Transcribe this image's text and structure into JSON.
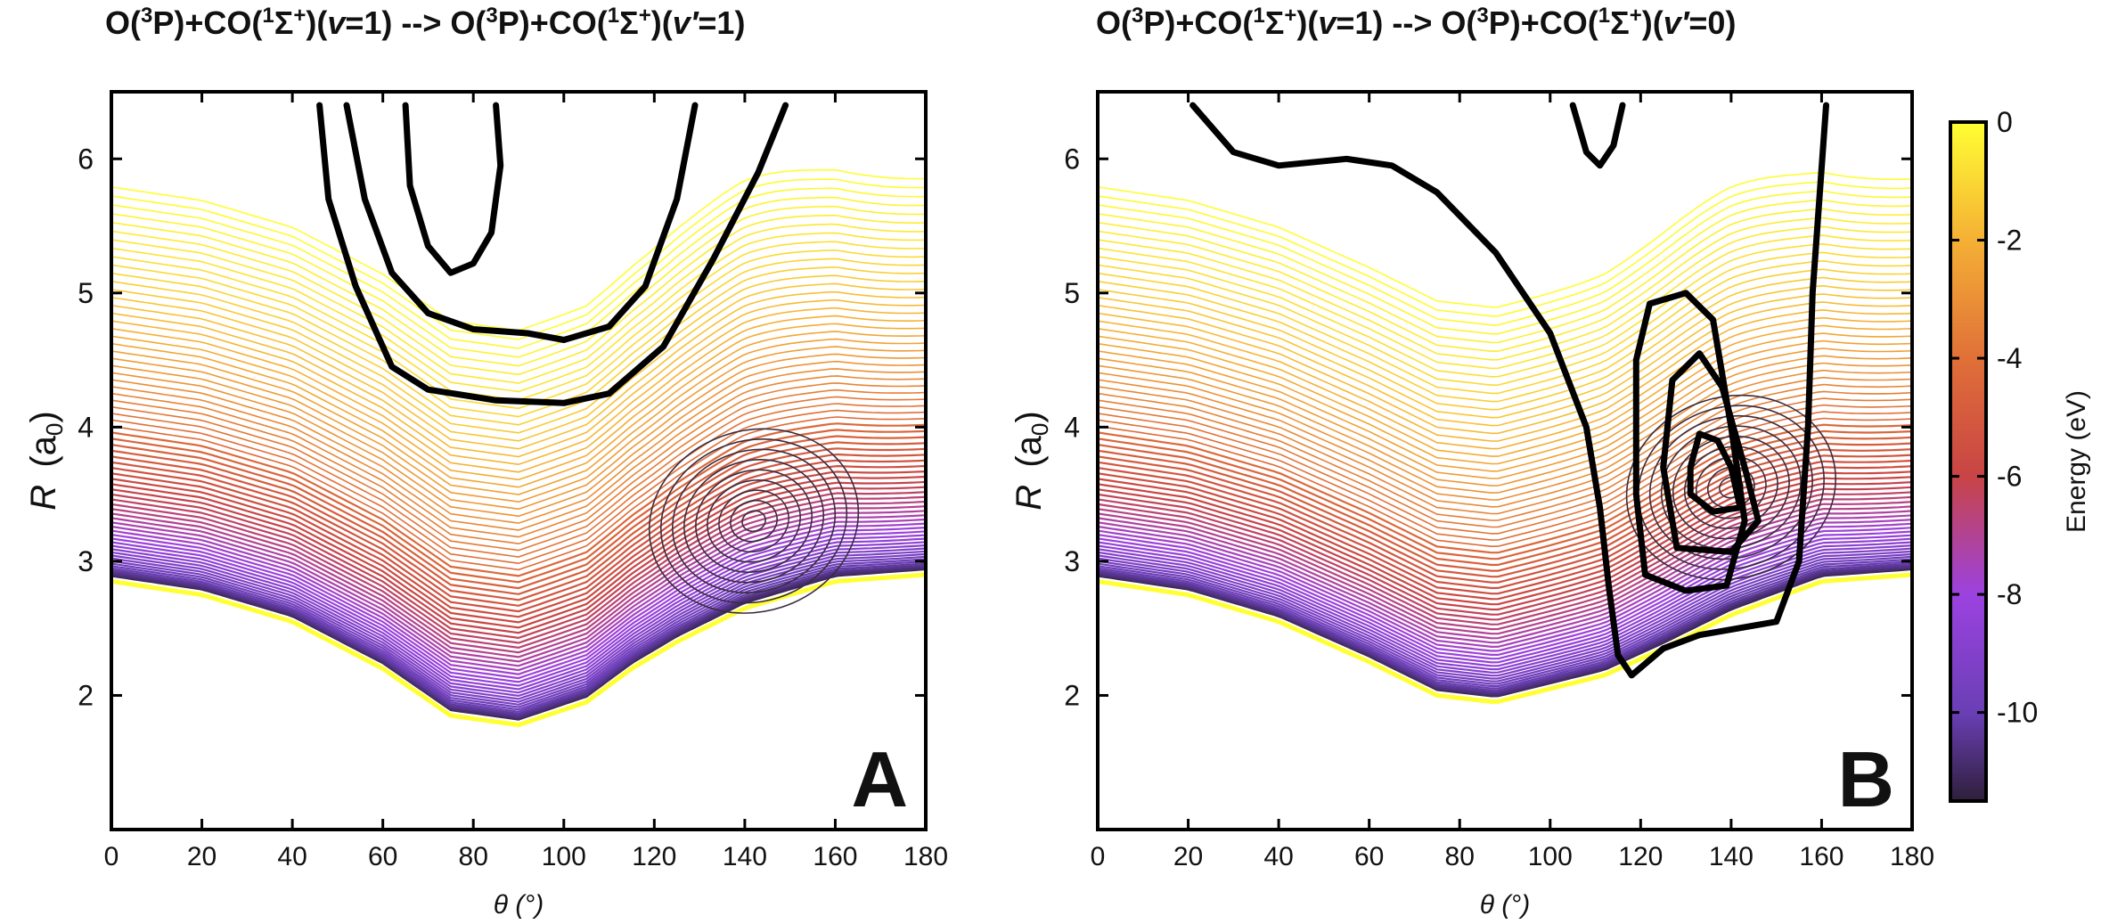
{
  "chart_data": [
    {
      "type": "contour",
      "panel_label": "A",
      "title": {
        "prefix": "O(",
        "s1": "3",
        "mid1": "P)+CO(",
        "s2": "1",
        "mid2": "Σ",
        "s3": "+",
        "mid3": ")(",
        "v": "v",
        "tail1": "=1) --> O(",
        "s4": "3",
        "mid4": "P)+CO(",
        "s5": "1",
        "mid5": "Σ",
        "s6": "+",
        "mid6": ")(",
        "vp": "v′",
        "tail2": "=1)"
      },
      "xlabel": "θ (°)",
      "ylabel_main": "R",
      "ylabel_unit": "(a",
      "ylabel_sub": "0",
      "ylabel_close": ")",
      "xlim": [
        0,
        180
      ],
      "ylim": [
        1.0,
        6.5
      ],
      "xticks": [
        "0",
        "20",
        "40",
        "60",
        "80",
        "100",
        "120",
        "140",
        "160",
        "180"
      ],
      "yticks": [
        "2",
        "3",
        "4",
        "5",
        "6"
      ],
      "wall_curve": [
        [
          0,
          2.85
        ],
        [
          20,
          2.75
        ],
        [
          40,
          2.55
        ],
        [
          60,
          2.2
        ],
        [
          75,
          1.85
        ],
        [
          90,
          1.78
        ],
        [
          105,
          1.95
        ],
        [
          115,
          2.2
        ],
        [
          125,
          2.4
        ],
        [
          140,
          2.65
        ],
        [
          160,
          2.85
        ],
        [
          180,
          2.9
        ]
      ],
      "wavefunction_contours": [
        [
          [
            46,
            6.4
          ],
          [
            48,
            5.7
          ],
          [
            54,
            5.05
          ],
          [
            62,
            4.45
          ],
          [
            70,
            4.28
          ],
          [
            85,
            4.2
          ],
          [
            100,
            4.18
          ],
          [
            110,
            4.25
          ],
          [
            122,
            4.6
          ],
          [
            133,
            5.25
          ],
          [
            143,
            5.9
          ],
          [
            149,
            6.4
          ]
        ],
        [
          [
            52,
            6.4
          ],
          [
            56,
            5.7
          ],
          [
            62,
            5.15
          ],
          [
            70,
            4.85
          ],
          [
            80,
            4.73
          ],
          [
            92,
            4.7
          ],
          [
            100,
            4.65
          ],
          [
            110,
            4.75
          ],
          [
            118,
            5.05
          ],
          [
            125,
            5.7
          ],
          [
            129,
            6.4
          ]
        ],
        [
          [
            65,
            6.4
          ],
          [
            66,
            5.8
          ],
          [
            70,
            5.35
          ],
          [
            75,
            5.15
          ],
          [
            80,
            5.22
          ],
          [
            84,
            5.45
          ],
          [
            86,
            5.95
          ],
          [
            85,
            6.4
          ]
        ]
      ],
      "well_center": [
        142,
        3.3
      ]
    },
    {
      "type": "contour",
      "panel_label": "B",
      "title": {
        "prefix": "O(",
        "s1": "3",
        "mid1": "P)+CO(",
        "s2": "1",
        "mid2": "Σ",
        "s3": "+",
        "mid3": ")(",
        "v": "v",
        "tail1": "=1) --> O(",
        "s4": "3",
        "mid4": "P)+CO(",
        "s5": "1",
        "mid5": "Σ",
        "s6": "+",
        "mid6": ")(",
        "vp": "v′",
        "tail2": "=0)"
      },
      "xlabel": "θ (°)",
      "ylabel_main": "R",
      "ylabel_unit": "(a",
      "ylabel_sub": "0",
      "ylabel_close": ")",
      "xlim": [
        0,
        180
      ],
      "ylim": [
        1.0,
        6.5
      ],
      "xticks": [
        "0",
        "20",
        "40",
        "60",
        "80",
        "100",
        "120",
        "140",
        "160",
        "180"
      ],
      "yticks": [
        "2",
        "3",
        "4",
        "5",
        "6"
      ],
      "wall_curve": [
        [
          0,
          2.85
        ],
        [
          20,
          2.75
        ],
        [
          40,
          2.55
        ],
        [
          60,
          2.25
        ],
        [
          75,
          2.0
        ],
        [
          88,
          1.95
        ],
        [
          100,
          2.05
        ],
        [
          112,
          2.15
        ],
        [
          125,
          2.35
        ],
        [
          140,
          2.6
        ],
        [
          160,
          2.85
        ],
        [
          180,
          2.9
        ]
      ],
      "wavefunction_contours": [
        [
          [
            21,
            6.4
          ],
          [
            30,
            6.05
          ],
          [
            40,
            5.95
          ],
          [
            55,
            6.0
          ],
          [
            65,
            5.95
          ],
          [
            75,
            5.75
          ],
          [
            88,
            5.3
          ],
          [
            100,
            4.7
          ],
          [
            108,
            4.0
          ],
          [
            111,
            3.4
          ],
          [
            113,
            2.8
          ],
          [
            115,
            2.3
          ],
          [
            118,
            2.15
          ],
          [
            125,
            2.35
          ],
          [
            133,
            2.45
          ],
          [
            150,
            2.55
          ],
          [
            155,
            3.0
          ],
          [
            157,
            4.0
          ],
          [
            158,
            5.0
          ],
          [
            161,
            6.4
          ]
        ],
        [
          [
            119,
            3.5
          ],
          [
            119,
            4.5
          ],
          [
            122,
            4.92
          ],
          [
            130,
            5.0
          ],
          [
            136,
            4.8
          ],
          [
            140,
            4.0
          ],
          [
            143,
            3.3
          ],
          [
            139,
            2.82
          ],
          [
            130,
            2.78
          ],
          [
            121,
            2.9
          ],
          [
            119,
            3.5
          ]
        ],
        [
          [
            125,
            3.7
          ],
          [
            127,
            4.35
          ],
          [
            133,
            4.55
          ],
          [
            138,
            4.3
          ],
          [
            143,
            3.7
          ],
          [
            146,
            3.3
          ],
          [
            140,
            3.07
          ],
          [
            128,
            3.1
          ],
          [
            125,
            3.7
          ]
        ],
        [
          [
            131,
            3.7
          ],
          [
            133,
            3.95
          ],
          [
            137,
            3.9
          ],
          [
            140,
            3.7
          ],
          [
            142,
            3.4
          ],
          [
            136,
            3.37
          ],
          [
            131,
            3.5
          ],
          [
            131,
            3.7
          ]
        ],
        [
          [
            105,
            6.4
          ],
          [
            108,
            6.05
          ],
          [
            111,
            5.95
          ],
          [
            114,
            6.1
          ],
          [
            116,
            6.4
          ]
        ]
      ],
      "well_center": [
        140,
        3.55
      ]
    }
  ],
  "colorbar": {
    "label": "Energy (eV)",
    "ticks": [
      "0",
      "-2",
      "-4",
      "-6",
      "-8",
      "-10"
    ],
    "tick_values": [
      0,
      -2,
      -4,
      -6,
      -8,
      -10
    ],
    "range": [
      -11.5,
      0
    ],
    "stops": [
      {
        "value": 0,
        "color": "#ffff33"
      },
      {
        "value": -2,
        "color": "#f5b035"
      },
      {
        "value": -4,
        "color": "#e07038"
      },
      {
        "value": -6,
        "color": "#c84445"
      },
      {
        "value": -8,
        "color": "#9c42e0"
      },
      {
        "value": -10,
        "color": "#6a3fb5"
      },
      {
        "value": -11.5,
        "color": "#2e1f3a"
      }
    ]
  }
}
